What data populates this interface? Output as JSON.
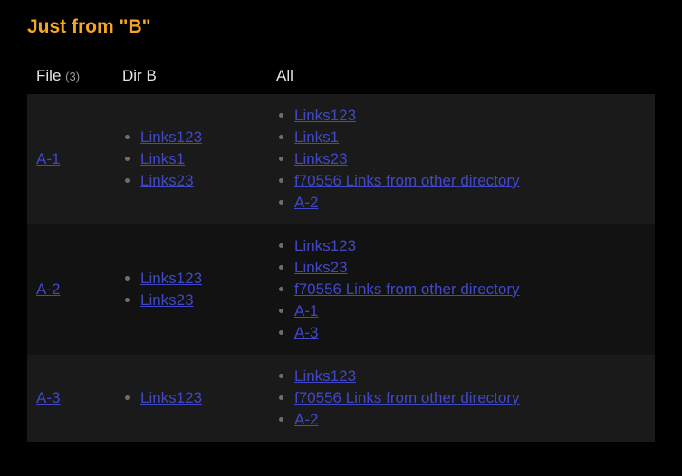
{
  "colors": {
    "title": "#f5a623",
    "link": "#4148c7",
    "bg": "#000000",
    "row_odd": "#1a1a1a",
    "row_even": "#121212",
    "bullet": "#6e6e6e",
    "header_text": "#e4e4e4",
    "count_text": "#9a9a9a"
  },
  "title": "Just from \"B\"",
  "table": {
    "columns": [
      {
        "label": "File",
        "count": "(3)"
      },
      {
        "label": "Dir B"
      },
      {
        "label": "All"
      }
    ],
    "rows": [
      {
        "file": "A-1",
        "dirB": [
          "Links123",
          "Links1",
          "Links23"
        ],
        "all": [
          "Links123",
          "Links1",
          "Links23",
          "f70556 Links from other directory",
          "A-2"
        ]
      },
      {
        "file": "A-2",
        "dirB": [
          "Links123",
          "Links23"
        ],
        "all": [
          "Links123",
          "Links23",
          "f70556 Links from other directory",
          "A-1",
          "A-3"
        ]
      },
      {
        "file": "A-3",
        "dirB": [
          "Links123"
        ],
        "all": [
          "Links123",
          "f70556 Links from other directory",
          "A-2"
        ]
      }
    ]
  }
}
